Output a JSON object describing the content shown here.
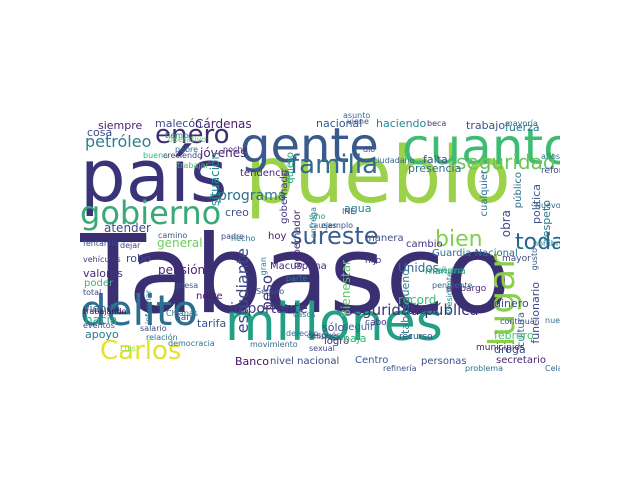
{
  "wordcloud": {
    "words": [
      {
        "text": "Tabasco",
        "color": "#3b2f73"
      },
      {
        "text": "pueblo",
        "color": "#9bd24a"
      },
      {
        "text": "país",
        "color": "#3b3378"
      },
      {
        "text": "millones",
        "color": "#21a085"
      },
      {
        "text": "cuanto",
        "color": "#3fbc73"
      },
      {
        "text": "gente",
        "color": "#3a5a8c"
      },
      {
        "text": "delito",
        "color": "#2d6f8e"
      },
      {
        "text": "gobierno",
        "color": "#3aa977"
      },
      {
        "text": "Carlos",
        "color": "#e3e32a"
      },
      {
        "text": "familia",
        "color": "#336a8d"
      },
      {
        "text": "enero",
        "color": "#3b2e70"
      },
      {
        "text": "sureste",
        "color": "#3a5f8f"
      },
      {
        "text": "lugar",
        "color": "#8ace4b"
      },
      {
        "text": "bien",
        "color": "#7ed04f"
      },
      {
        "text": "toda",
        "color": "#21668d"
      },
      {
        "text": "seguridad",
        "color": "#69c75a"
      },
      {
        "text": "petróleo",
        "color": "#2f7d8e"
      },
      {
        "text": "peso",
        "color": "#44337e"
      },
      {
        "text": "estudiante",
        "color": "#3e4a89"
      },
      {
        "text": "importante",
        "color": "#433c84"
      },
      {
        "text": "seguridad pública",
        "color": "#3b3378"
      },
      {
        "text": "programa",
        "color": "#2c738e"
      },
      {
        "text": "siempre",
        "color": "#481c6e"
      },
      {
        "text": "malecón",
        "color": "#3e4989"
      },
      {
        "text": "Cárdenas",
        "color": "#4a1c6e"
      },
      {
        "text": "jóvenes",
        "color": "#4a2273"
      },
      {
        "text": "cosa",
        "color": "#3e4c8a"
      },
      {
        "text": "nacional",
        "color": "#37598c"
      },
      {
        "text": "haciendo",
        "color": "#23888e"
      },
      {
        "text": "trabajo",
        "color": "#3a538b"
      },
      {
        "text": "fuerza",
        "color": "#287d8e"
      },
      {
        "text": "presencia",
        "color": "#2e6e8e"
      },
      {
        "text": "falta",
        "color": "#3a538b"
      },
      {
        "text": "tendencia",
        "color": "#482979"
      },
      {
        "text": "situación",
        "color": "#21918c"
      },
      {
        "text": "atender",
        "color": "#3e4a89"
      },
      {
        "text": "hacia",
        "color": "#28ae80"
      },
      {
        "text": "apoyo",
        "color": "#2a788e"
      },
      {
        "text": "pensión",
        "color": "#482576"
      },
      {
        "text": "robo",
        "color": "#3f4788"
      },
      {
        "text": "valores",
        "color": "#46307e"
      },
      {
        "text": "poder",
        "color": "#35b779"
      },
      {
        "text": "viendo",
        "color": "#31688e"
      },
      {
        "text": "Macuspana",
        "color": "#482878"
      },
      {
        "text": "Unidos",
        "color": "#31688e"
      },
      {
        "text": "récord",
        "color": "#3aba76"
      },
      {
        "text": "Lázaro",
        "color": "#46307e"
      },
      {
        "text": "dinero",
        "color": "#3e4c8a"
      },
      {
        "text": "cultura",
        "color": "#2c738e"
      },
      {
        "text": "droga",
        "color": "#3b528b"
      },
      {
        "text": "febrero",
        "color": "#4ac16d"
      },
      {
        "text": "secretario",
        "color": "#481f70"
      },
      {
        "text": "funcionario",
        "color": "#404688"
      },
      {
        "text": "respeto",
        "color": "#2a788e"
      },
      {
        "text": "política",
        "color": "#3b528b"
      },
      {
        "text": "obra",
        "color": "#3f4788"
      },
      {
        "text": "cualquier",
        "color": "#2d708e"
      },
      {
        "text": "público",
        "color": "#2e6d8e"
      },
      {
        "text": "agua",
        "color": "#25848e"
      },
      {
        "text": "hoy",
        "color": "#481769"
      },
      {
        "text": "manera",
        "color": "#3d4d8a"
      },
      {
        "text": "cambio",
        "color": "#46337f"
      },
      {
        "text": "general",
        "color": "#6ccd5a"
      },
      {
        "text": "creo",
        "color": "#3b528b"
      },
      {
        "text": "norte",
        "color": "#481668"
      },
      {
        "text": "tarifa",
        "color": "#3b528b"
      },
      {
        "text": "sólo",
        "color": "#3d4e8a"
      },
      {
        "text": "logró",
        "color": "#482475"
      },
      {
        "text": "nivel nacional",
        "color": "#3f4788"
      },
      {
        "text": "baja",
        "color": "#35b779"
      },
      {
        "text": "seguir",
        "color": "#31688e"
      },
      {
        "text": "Centro",
        "color": "#39568c"
      },
      {
        "text": "Banco",
        "color": "#471063"
      },
      {
        "text": "personas",
        "color": "#3b528b"
      },
      {
        "text": "Guardia Nacional",
        "color": "#2f6c8e"
      },
      {
        "text": "tabasqueño",
        "color": "#26828e"
      },
      {
        "text": "Bienestar",
        "color": "#5ec962"
      },
      {
        "text": "gobernador",
        "color": "#482677"
      },
      {
        "text": "gobernado",
        "color": "#453882"
      },
      {
        "text": "quiero",
        "color": "#20a386"
      },
      {
        "text": "mañana",
        "color": "#22a785"
      },
      {
        "text": "hijo",
        "color": "#453781"
      },
      {
        "text": "San",
        "color": "#404588"
      },
      {
        "text": "presupuesto",
        "color": "#482173"
      },
      {
        "text": "reforma",
        "color": "#3e4989"
      },
      {
        "text": "municipios",
        "color": "#482071"
      },
      {
        "text": "recurso",
        "color": "#3b528b"
      },
      {
        "text": "cabo",
        "color": "#453882"
      },
      {
        "text": "embargo",
        "color": "#482878"
      },
      {
        "text": "mayor",
        "color": "#3e4a89"
      },
      {
        "text": "Chiapas",
        "color": "#2c728e"
      },
      {
        "text": "casos",
        "color": "#25858e"
      },
      {
        "text": "parte",
        "color": "#2a788e"
      },
      {
        "text": "presa",
        "color": "#38598c"
      },
      {
        "text": "Seguro",
        "color": "#3c508b"
      },
      {
        "text": "gran",
        "color": "#2a778e"
      },
      {
        "text": "padre",
        "color": "#414487"
      },
      {
        "text": "hecho",
        "color": "#2b748e"
      },
      {
        "text": "noche",
        "color": "#482979"
      },
      {
        "text": "dio",
        "color": "#3e4a89"
      },
      {
        "text": "Nuevo",
        "color": "#31688e"
      },
      {
        "text": "INE",
        "color": "#3b528b"
      },
      {
        "text": "sino",
        "color": "#1f988b"
      },
      {
        "text": "causas",
        "color": "#2c728e"
      },
      {
        "text": "ejemplo",
        "color": "#39568c"
      },
      {
        "text": "ciudadano",
        "color": "#2f6c8e"
      },
      {
        "text": "asunto",
        "color": "#2e6e8e"
      },
      {
        "text": "viene",
        "color": "#3f4889"
      },
      {
        "text": "beca",
        "color": "#46327e"
      },
      {
        "text": "mayoría",
        "color": "#2f6b8e"
      },
      {
        "text": "tiempo",
        "color": "#2c718e"
      },
      {
        "text": "operativo",
        "color": "#5ec962"
      },
      {
        "text": "buena",
        "color": "#31b57b"
      },
      {
        "text": "creciendo",
        "color": "#3f4788"
      },
      {
        "text": "pobre",
        "color": "#2c718e"
      },
      {
        "text": "trabajar",
        "color": "#4ac16d"
      },
      {
        "text": "años",
        "color": "#2a788e"
      },
      {
        "text": "fentanilo",
        "color": "#3e4a89"
      },
      {
        "text": "vehículos",
        "color": "#453882"
      },
      {
        "text": "total",
        "color": "#3f4788"
      },
      {
        "text": "trabajando",
        "color": "#440154"
      },
      {
        "text": "eventos",
        "color": "#3b528b"
      },
      {
        "text": "salario",
        "color": "#3e4989"
      },
      {
        "text": "relación",
        "color": "#2c728e"
      },
      {
        "text": "democracia",
        "color": "#2c738e"
      },
      {
        "text": "Luis",
        "color": "#8fd744"
      },
      {
        "text": "sexual",
        "color": "#3e4989"
      },
      {
        "text": "movimiento",
        "color": "#2e6d8e"
      },
      {
        "text": "derecho",
        "color": "#2a788e"
      },
      {
        "text": "después",
        "color": "#3b528b"
      },
      {
        "text": "maestro",
        "color": "#20a386"
      },
      {
        "text": "pendiente",
        "color": "#2f6c8e"
      },
      {
        "text": "Presidente",
        "color": "#25858e"
      },
      {
        "text": "refinería",
        "color": "#3b528b"
      },
      {
        "text": "problema",
        "color": "#2c738e"
      },
      {
        "text": "Celac",
        "color": "#31688e"
      },
      {
        "text": "continuar",
        "color": "#3e4a89"
      },
      {
        "text": "nombre",
        "color": "#2a788e"
      },
      {
        "text": "gusto",
        "color": "#39568c"
      },
      {
        "text": "nuevos",
        "color": "#2c738e"
      },
      {
        "text": "dejar",
        "color": "#3f4788"
      },
      {
        "text": "mismo",
        "color": "#3b528b"
      },
      {
        "text": "camino",
        "color": "#39568c"
      },
      {
        "text": "informar",
        "color": "#2c738e"
      },
      {
        "text": "entrega",
        "color": "#2a788e"
      }
    ]
  }
}
